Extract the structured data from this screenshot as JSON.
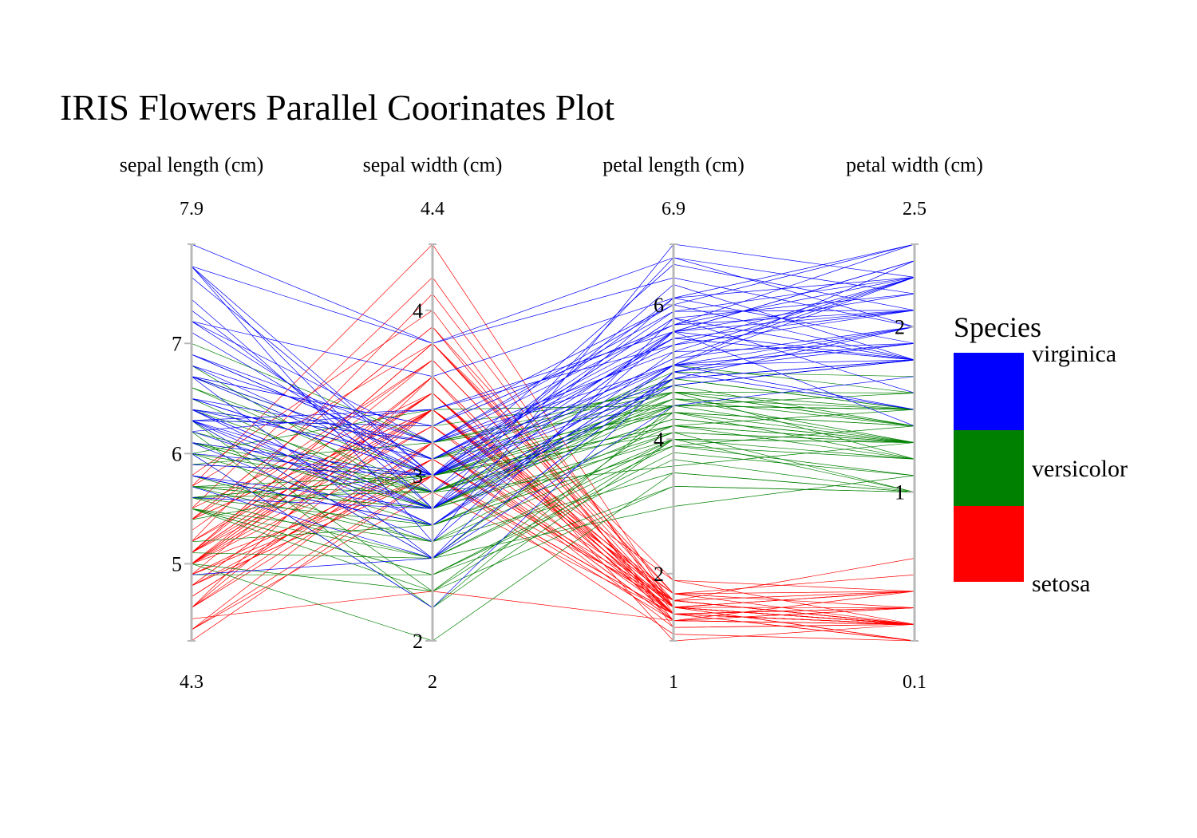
{
  "chart_data": {
    "type": "parallel-coordinates",
    "title": "IRIS Flowers Parallel Coorinates Plot",
    "axes": [
      {
        "label": "sepal length (cm)",
        "min": 4.3,
        "max": 7.9,
        "min_label": "4.3",
        "max_label": "7.9",
        "ticks": [
          5,
          6,
          7
        ]
      },
      {
        "label": "sepal width (cm)",
        "min": 2,
        "max": 4.4,
        "min_label": "2",
        "max_label": "4.4",
        "ticks": [
          2,
          3,
          4
        ]
      },
      {
        "label": "petal length (cm)",
        "min": 1,
        "max": 6.9,
        "min_label": "1",
        "max_label": "6.9",
        "ticks": [
          2,
          4,
          6
        ]
      },
      {
        "label": "petal width (cm)",
        "min": 0.1,
        "max": 2.5,
        "min_label": "0.1",
        "max_label": "2.5",
        "ticks": [
          1,
          2
        ]
      }
    ],
    "legend": {
      "title": "Species",
      "placement": "right",
      "entries": [
        {
          "name": "virginica",
          "color": "#0000ff"
        },
        {
          "name": "versicolor",
          "color": "#008000"
        },
        {
          "name": "setosa",
          "color": "#ff0000"
        }
      ]
    },
    "series": [
      {
        "name": "setosa",
        "color": "#ff0000",
        "rows": [
          [
            5.1,
            3.5,
            1.4,
            0.2
          ],
          [
            4.9,
            3.0,
            1.4,
            0.2
          ],
          [
            4.7,
            3.2,
            1.3,
            0.2
          ],
          [
            4.6,
            3.1,
            1.5,
            0.2
          ],
          [
            5.0,
            3.6,
            1.4,
            0.2
          ],
          [
            5.4,
            3.9,
            1.7,
            0.4
          ],
          [
            4.6,
            3.4,
            1.4,
            0.3
          ],
          [
            5.0,
            3.4,
            1.5,
            0.2
          ],
          [
            4.4,
            2.9,
            1.4,
            0.2
          ],
          [
            4.9,
            3.1,
            1.5,
            0.1
          ],
          [
            5.4,
            3.7,
            1.5,
            0.2
          ],
          [
            4.8,
            3.4,
            1.6,
            0.2
          ],
          [
            4.8,
            3.0,
            1.4,
            0.1
          ],
          [
            4.3,
            3.0,
            1.1,
            0.1
          ],
          [
            5.8,
            4.0,
            1.2,
            0.2
          ],
          [
            5.7,
            4.4,
            1.5,
            0.4
          ],
          [
            5.4,
            3.9,
            1.3,
            0.4
          ],
          [
            5.1,
            3.5,
            1.4,
            0.3
          ],
          [
            5.7,
            3.8,
            1.7,
            0.3
          ],
          [
            5.1,
            3.8,
            1.5,
            0.3
          ],
          [
            5.4,
            3.4,
            1.7,
            0.2
          ],
          [
            5.1,
            3.7,
            1.5,
            0.4
          ],
          [
            4.6,
            3.6,
            1.0,
            0.2
          ],
          [
            5.1,
            3.3,
            1.7,
            0.5
          ],
          [
            4.8,
            3.4,
            1.9,
            0.2
          ],
          [
            5.0,
            3.0,
            1.6,
            0.2
          ],
          [
            5.0,
            3.4,
            1.6,
            0.4
          ],
          [
            5.2,
            3.5,
            1.5,
            0.2
          ],
          [
            5.2,
            3.4,
            1.4,
            0.2
          ],
          [
            4.7,
            3.2,
            1.6,
            0.2
          ],
          [
            4.8,
            3.1,
            1.6,
            0.2
          ],
          [
            5.4,
            3.4,
            1.5,
            0.4
          ],
          [
            5.2,
            4.1,
            1.5,
            0.1
          ],
          [
            5.5,
            4.2,
            1.4,
            0.2
          ],
          [
            4.9,
            3.1,
            1.5,
            0.2
          ],
          [
            5.0,
            3.2,
            1.2,
            0.2
          ],
          [
            5.5,
            3.5,
            1.3,
            0.2
          ],
          [
            4.9,
            3.6,
            1.4,
            0.1
          ],
          [
            4.4,
            3.0,
            1.3,
            0.2
          ],
          [
            5.1,
            3.4,
            1.5,
            0.2
          ],
          [
            5.0,
            3.5,
            1.3,
            0.3
          ],
          [
            4.5,
            2.3,
            1.3,
            0.3
          ],
          [
            4.4,
            3.2,
            1.3,
            0.2
          ],
          [
            5.0,
            3.5,
            1.6,
            0.6
          ],
          [
            5.1,
            3.8,
            1.9,
            0.4
          ],
          [
            4.8,
            3.0,
            1.4,
            0.3
          ],
          [
            5.1,
            3.8,
            1.6,
            0.2
          ],
          [
            4.6,
            3.2,
            1.4,
            0.2
          ],
          [
            5.3,
            3.7,
            1.5,
            0.2
          ],
          [
            5.0,
            3.3,
            1.4,
            0.2
          ]
        ]
      },
      {
        "name": "versicolor",
        "color": "#008000",
        "rows": [
          [
            7.0,
            3.2,
            4.7,
            1.4
          ],
          [
            6.4,
            3.2,
            4.5,
            1.5
          ],
          [
            6.9,
            3.1,
            4.9,
            1.5
          ],
          [
            5.5,
            2.3,
            4.0,
            1.3
          ],
          [
            6.5,
            2.8,
            4.6,
            1.5
          ],
          [
            5.7,
            2.8,
            4.5,
            1.3
          ],
          [
            6.3,
            3.3,
            4.7,
            1.6
          ],
          [
            4.9,
            2.4,
            3.3,
            1.0
          ],
          [
            6.6,
            2.9,
            4.6,
            1.3
          ],
          [
            5.2,
            2.7,
            3.9,
            1.4
          ],
          [
            5.0,
            2.0,
            3.5,
            1.0
          ],
          [
            5.9,
            3.0,
            4.2,
            1.5
          ],
          [
            6.0,
            2.2,
            4.0,
            1.0
          ],
          [
            6.1,
            2.9,
            4.7,
            1.4
          ],
          [
            5.6,
            2.9,
            3.6,
            1.3
          ],
          [
            6.7,
            3.1,
            4.4,
            1.4
          ],
          [
            5.6,
            3.0,
            4.5,
            1.5
          ],
          [
            5.8,
            2.7,
            4.1,
            1.0
          ],
          [
            6.2,
            2.2,
            4.5,
            1.5
          ],
          [
            5.6,
            2.5,
            3.9,
            1.1
          ],
          [
            5.9,
            3.2,
            4.8,
            1.8
          ],
          [
            6.1,
            2.8,
            4.0,
            1.3
          ],
          [
            6.3,
            2.5,
            4.9,
            1.5
          ],
          [
            6.1,
            2.8,
            4.7,
            1.2
          ],
          [
            6.4,
            2.9,
            4.3,
            1.3
          ],
          [
            6.6,
            3.0,
            4.4,
            1.4
          ],
          [
            6.8,
            2.8,
            4.8,
            1.4
          ],
          [
            6.7,
            3.0,
            5.0,
            1.7
          ],
          [
            6.0,
            2.9,
            4.5,
            1.5
          ],
          [
            5.7,
            2.6,
            3.5,
            1.0
          ],
          [
            5.5,
            2.4,
            3.8,
            1.1
          ],
          [
            5.5,
            2.4,
            3.7,
            1.0
          ],
          [
            5.8,
            2.7,
            3.9,
            1.2
          ],
          [
            6.0,
            2.7,
            5.1,
            1.6
          ],
          [
            5.4,
            3.0,
            4.5,
            1.5
          ],
          [
            6.0,
            3.4,
            4.5,
            1.6
          ],
          [
            6.7,
            3.1,
            4.7,
            1.5
          ],
          [
            6.3,
            2.3,
            4.4,
            1.3
          ],
          [
            5.6,
            3.0,
            4.1,
            1.3
          ],
          [
            5.5,
            2.5,
            4.0,
            1.3
          ],
          [
            5.5,
            2.6,
            4.4,
            1.2
          ],
          [
            6.1,
            3.0,
            4.6,
            1.4
          ],
          [
            5.8,
            2.6,
            4.0,
            1.2
          ],
          [
            5.0,
            2.3,
            3.3,
            1.0
          ],
          [
            5.6,
            2.7,
            4.2,
            1.3
          ],
          [
            5.7,
            3.0,
            4.2,
            1.2
          ],
          [
            5.7,
            2.9,
            4.2,
            1.3
          ],
          [
            6.2,
            2.9,
            4.3,
            1.3
          ],
          [
            5.1,
            2.5,
            3.0,
            1.1
          ],
          [
            5.7,
            2.8,
            4.1,
            1.3
          ]
        ]
      },
      {
        "name": "virginica",
        "color": "#0000ff",
        "rows": [
          [
            6.3,
            3.3,
            6.0,
            2.5
          ],
          [
            5.8,
            2.7,
            5.1,
            1.9
          ],
          [
            7.1,
            3.0,
            5.9,
            2.1
          ],
          [
            6.3,
            2.9,
            5.6,
            1.8
          ],
          [
            6.5,
            3.0,
            5.8,
            2.2
          ],
          [
            7.6,
            3.0,
            6.6,
            2.1
          ],
          [
            4.9,
            2.5,
            4.5,
            1.7
          ],
          [
            7.3,
            2.9,
            6.3,
            1.8
          ],
          [
            6.7,
            2.5,
            5.8,
            1.8
          ],
          [
            7.2,
            3.6,
            6.1,
            2.5
          ],
          [
            6.5,
            3.2,
            5.1,
            2.0
          ],
          [
            6.4,
            2.7,
            5.3,
            1.9
          ],
          [
            6.8,
            3.0,
            5.5,
            2.1
          ],
          [
            5.7,
            2.5,
            5.0,
            2.0
          ],
          [
            5.8,
            2.8,
            5.1,
            2.4
          ],
          [
            6.4,
            3.2,
            5.3,
            2.3
          ],
          [
            6.5,
            3.0,
            5.5,
            1.8
          ],
          [
            7.7,
            3.8,
            6.7,
            2.2
          ],
          [
            7.7,
            2.6,
            6.9,
            2.3
          ],
          [
            6.0,
            2.2,
            5.0,
            1.5
          ],
          [
            6.9,
            3.2,
            5.7,
            2.3
          ],
          [
            5.6,
            2.8,
            4.9,
            2.0
          ],
          [
            7.7,
            2.8,
            6.7,
            2.0
          ],
          [
            6.3,
            2.7,
            4.9,
            1.8
          ],
          [
            6.7,
            3.3,
            5.7,
            2.1
          ],
          [
            7.2,
            3.2,
            6.0,
            1.8
          ],
          [
            6.2,
            2.8,
            4.8,
            1.8
          ],
          [
            6.1,
            3.0,
            4.9,
            1.8
          ],
          [
            6.4,
            2.8,
            5.6,
            2.1
          ],
          [
            7.2,
            3.0,
            5.8,
            1.6
          ],
          [
            7.4,
            2.8,
            6.1,
            1.9
          ],
          [
            7.9,
            3.8,
            6.4,
            2.0
          ],
          [
            6.4,
            2.8,
            5.6,
            2.2
          ],
          [
            6.3,
            2.8,
            5.1,
            1.5
          ],
          [
            6.1,
            2.6,
            5.6,
            1.4
          ],
          [
            7.7,
            3.0,
            6.1,
            2.3
          ],
          [
            6.3,
            3.4,
            5.6,
            2.4
          ],
          [
            6.4,
            3.1,
            5.5,
            1.8
          ],
          [
            6.0,
            3.0,
            4.8,
            1.8
          ],
          [
            6.9,
            3.1,
            5.4,
            2.1
          ],
          [
            6.7,
            3.1,
            5.6,
            2.4
          ],
          [
            6.9,
            3.1,
            5.1,
            2.3
          ],
          [
            5.8,
            2.7,
            5.1,
            1.9
          ],
          [
            6.8,
            3.2,
            5.9,
            2.3
          ],
          [
            6.7,
            3.3,
            5.7,
            2.5
          ],
          [
            6.7,
            3.0,
            5.2,
            2.3
          ],
          [
            6.3,
            2.5,
            5.0,
            1.9
          ],
          [
            6.5,
            3.0,
            5.2,
            2.0
          ],
          [
            6.2,
            3.4,
            5.4,
            2.3
          ],
          [
            5.9,
            3.0,
            5.1,
            1.8
          ]
        ]
      }
    ]
  }
}
